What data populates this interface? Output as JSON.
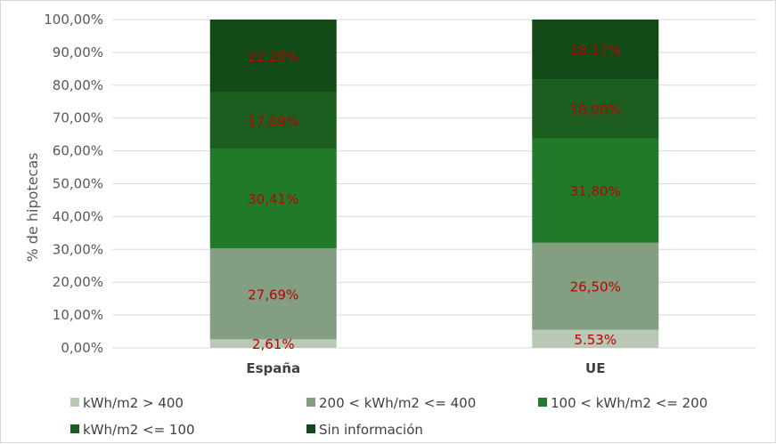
{
  "chart_data": {
    "type": "bar",
    "stacked": true,
    "ylabel": "% de hipotecas",
    "xlabel": "",
    "ylim": [
      0,
      100
    ],
    "yticks": [
      "0,00%",
      "10,00%",
      "20,00%",
      "30,00%",
      "40,00%",
      "50,00%",
      "60,00%",
      "70,00%",
      "80,00%",
      "90,00%",
      "100,00%"
    ],
    "grid": true,
    "legend_position": "bottom",
    "categories": [
      "España",
      "UE"
    ],
    "series": [
      {
        "name": "kWh/m2 > 400",
        "color": "#b9c9b5",
        "values": [
          2.61,
          5.53
        ],
        "labels": [
          "2,61%",
          "5.53%"
        ]
      },
      {
        "name": "200 < kWh/m2 <= 400",
        "color": "#849e82",
        "values": [
          27.69,
          26.5
        ],
        "labels": [
          "27,69%",
          "26,50%"
        ]
      },
      {
        "name": "100 < kWh/m2 <= 200",
        "color": "#217a2a",
        "values": [
          30.41,
          31.8
        ],
        "labels": [
          "30,41%",
          "31,80%"
        ]
      },
      {
        "name": "kWh/m2 <= 100",
        "color": "#1b5e20",
        "values": [
          17.09,
          18.0
        ],
        "labels": [
          "17,09%",
          "18,00%"
        ]
      },
      {
        "name": "Sin información",
        "color": "#124a17",
        "values": [
          22.2,
          18.17
        ],
        "labels": [
          "22,20%",
          "18.17%"
        ]
      }
    ]
  }
}
